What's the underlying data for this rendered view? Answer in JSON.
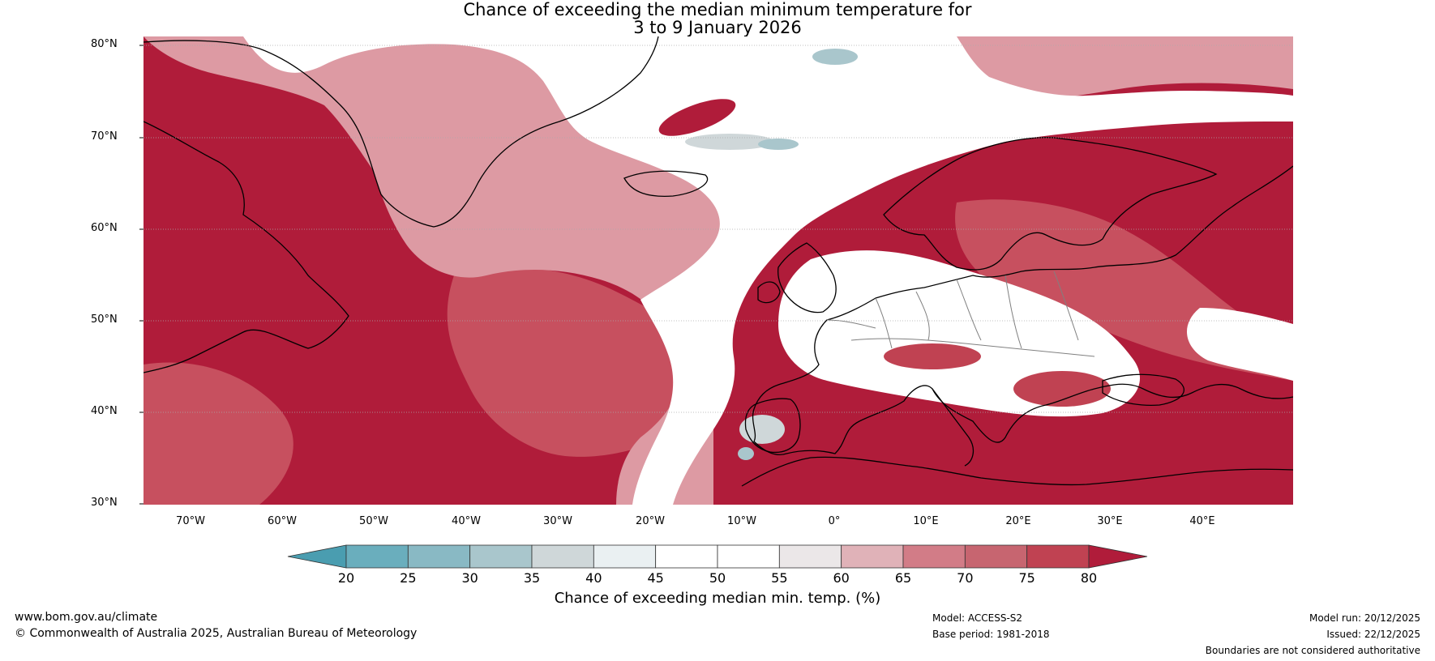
{
  "title": {
    "line1": "Chance of exceeding the median minimum temperature for",
    "line2": "3 to 9 January 2026"
  },
  "map": {
    "lat_labels": [
      "80°N",
      "70°N",
      "60°N",
      "50°N",
      "40°N",
      "30°N"
    ],
    "lon_labels": [
      "70°W",
      "60°W",
      "50°W",
      "40°W",
      "30°W",
      "20°W",
      "10°W",
      "0°",
      "10°E",
      "20°E",
      "30°E",
      "40°E"
    ],
    "colors": {
      "high": "#b01c3a",
      "mid_high": "#c7505f",
      "mid": "#dd9aa3",
      "neutral": "#ffffff",
      "low": "#a9c6cc",
      "land_line": "#000000",
      "border_line": "#808080"
    }
  },
  "colorbar": {
    "ticks": [
      "20",
      "25",
      "30",
      "35",
      "40",
      "45",
      "50",
      "55",
      "60",
      "65",
      "70",
      "75",
      "80"
    ],
    "colors": [
      "#4a9db0",
      "#6aaebd",
      "#89b9c4",
      "#a9c6cc",
      "#cfd7d9",
      "#eaf0f2",
      "#ffffff",
      "#ffffff",
      "#ebe7e8",
      "#e0b2b8",
      "#d27c87",
      "#c76570",
      "#c04252",
      "#b01c3a"
    ],
    "label": "Chance of exceeding median min. temp. (%)"
  },
  "footer": {
    "website": "www.bom.gov.au/climate",
    "copyright": "© Commonwealth of Australia 2025, Australian Bureau of Meteorology",
    "model": "Model: ACCESS-S2",
    "base_period": "Base period: 1981-2018",
    "model_run": "Model run: 20/12/2025",
    "issued": "Issued: 22/12/2025",
    "disclaimer": "Boundaries are not considered authoritative"
  }
}
